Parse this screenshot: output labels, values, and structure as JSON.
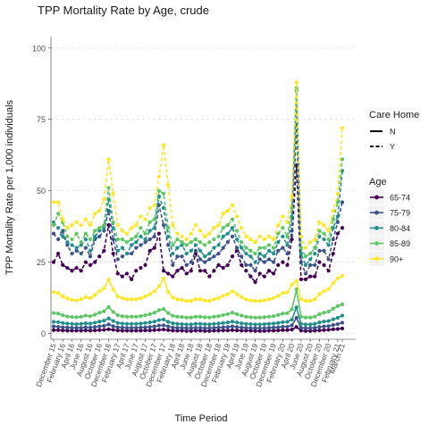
{
  "chart_data": {
    "type": "line",
    "title": "TPP Mortality Rate by Age, crude",
    "xlabel": "Time Period",
    "ylabel": "TPP Mortality Rate per 1,000 individuals",
    "ylim": [
      -2,
      104
    ],
    "yticks": [
      0,
      25,
      50,
      75,
      100
    ],
    "grid": true,
    "legend_position": "right",
    "x_tick_labels": [
      "December 15",
      "February 16",
      "April 16",
      "June 16",
      "August 16",
      "October 16",
      "December 16",
      "February 17",
      "April 17",
      "June 17",
      "August 17",
      "October 17",
      "December 17",
      "February 18",
      "April 18",
      "June 18",
      "August 18",
      "October 18",
      "December 18",
      "February 19",
      "April 19",
      "June 19",
      "August 19",
      "October 19",
      "December 19",
      "February 20",
      "April 20",
      "June 20",
      "August 20",
      "October 20",
      "December 20",
      "February 21",
      "March 21"
    ],
    "x_tick_months": [
      0,
      2,
      4,
      6,
      8,
      10,
      12,
      14,
      16,
      18,
      20,
      22,
      24,
      26,
      28,
      30,
      32,
      34,
      36,
      38,
      40,
      42,
      44,
      46,
      48,
      50,
      52,
      54,
      56,
      58,
      60,
      62,
      63
    ],
    "legend": {
      "linetype_title": "Care Home",
      "linetype_items": [
        {
          "label": "N",
          "dash": "solid"
        },
        {
          "label": "Y",
          "dash": "dashed"
        }
      ],
      "age_title": "Age",
      "age_items": [
        {
          "label": "65-74",
          "color": "#440154"
        },
        {
          "label": "75-79",
          "color": "#3b528b"
        },
        {
          "label": "80-84",
          "color": "#21908c"
        },
        {
          "label": "85-89",
          "color": "#5dc863"
        },
        {
          "label": "90+",
          "color": "#fde725"
        }
      ]
    },
    "months_x": [
      0,
      1,
      2,
      3,
      4,
      5,
      6,
      7,
      8,
      9,
      10,
      11,
      12,
      13,
      14,
      15,
      16,
      17,
      18,
      19,
      20,
      21,
      22,
      23,
      24,
      25,
      26,
      27,
      28,
      29,
      30,
      31,
      32,
      33,
      34,
      35,
      36,
      37,
      38,
      39,
      40,
      41,
      42,
      43,
      44,
      45,
      46,
      47,
      48,
      49,
      50,
      51,
      52,
      53,
      54,
      55,
      56,
      57,
      58,
      59,
      60,
      61,
      62,
      63
    ],
    "series": [
      {
        "name": "65-74",
        "care_home": "Y",
        "color": "#440154",
        "values": [
          25,
          28,
          24,
          23,
          22,
          23,
          22,
          25,
          24,
          25,
          27,
          29,
          38,
          28,
          21,
          20,
          21,
          19,
          22,
          23,
          24,
          29,
          30,
          35,
          22,
          21,
          20,
          22,
          23,
          21,
          22,
          28,
          22,
          22,
          20,
          22,
          24,
          23,
          24,
          27,
          29,
          24,
          22,
          20,
          18,
          21,
          20,
          22,
          21,
          24,
          25,
          24,
          33,
          59,
          19,
          19,
          20,
          20,
          25,
          24,
          22,
          28,
          35,
          37
        ]
      },
      {
        "name": "75-79",
        "care_home": "Y",
        "color": "#3b528b",
        "values": [
          35,
          33,
          36,
          31,
          28,
          29,
          28,
          30,
          27,
          33,
          34,
          36,
          43,
          33,
          26,
          27,
          28,
          28,
          30,
          31,
          32,
          33,
          34,
          45,
          38,
          31,
          24,
          27,
          27,
          24,
          25,
          29,
          26,
          25,
          26,
          27,
          28,
          30,
          32,
          34,
          30,
          27,
          24,
          24,
          22,
          26,
          25,
          26,
          25,
          29,
          30,
          28,
          36,
          73,
          25,
          21,
          24,
          24,
          29,
          29,
          26,
          33,
          39,
          46
        ]
      },
      {
        "name": "80-84",
        "care_home": "Y",
        "color": "#21908c",
        "values": [
          39,
          37,
          34,
          32,
          31,
          30,
          31,
          33,
          29,
          34,
          36,
          37,
          47,
          37,
          29,
          30,
          28,
          31,
          32,
          34,
          33,
          36,
          37,
          48,
          44,
          34,
          28,
          30,
          31,
          28,
          29,
          31,
          29,
          27,
          28,
          30,
          31,
          34,
          35,
          37,
          33,
          30,
          28,
          27,
          25,
          28,
          27,
          29,
          28,
          32,
          34,
          31,
          41,
          85,
          28,
          24,
          26,
          28,
          34,
          33,
          31,
          37,
          41,
          57
        ]
      },
      {
        "name": "85-89",
        "care_home": "Y",
        "color": "#5dc863",
        "values": [
          38,
          42,
          39,
          34,
          33,
          35,
          32,
          35,
          33,
          36,
          37,
          38,
          51,
          39,
          33,
          33,
          32,
          33,
          34,
          37,
          35,
          39,
          40,
          50,
          49,
          37,
          31,
          33,
          32,
          31,
          32,
          33,
          32,
          31,
          32,
          33,
          34,
          37,
          38,
          40,
          36,
          32,
          30,
          29,
          28,
          30,
          30,
          31,
          30,
          35,
          37,
          34,
          44,
          86,
          30,
          27,
          28,
          30,
          36,
          35,
          33,
          40,
          46,
          61
        ]
      },
      {
        "name": "90+",
        "care_home": "Y",
        "color": "#fde725",
        "values": [
          46,
          46,
          40,
          37,
          38,
          39,
          38,
          40,
          38,
          42,
          43,
          47,
          61,
          49,
          38,
          36,
          35,
          37,
          38,
          41,
          40,
          44,
          45,
          55,
          66,
          52,
          38,
          35,
          34,
          33,
          35,
          38,
          36,
          34,
          35,
          37,
          38,
          42,
          43,
          45,
          41,
          37,
          34,
          33,
          32,
          34,
          33,
          34,
          33,
          38,
          41,
          39,
          48,
          88,
          34,
          30,
          32,
          33,
          39,
          38,
          36,
          43,
          49,
          72
        ]
      },
      {
        "name": "65-74",
        "care_home": "N",
        "color": "#440154",
        "values": [
          1.2,
          1.2,
          1.1,
          1.0,
          1.0,
          1.0,
          1.0,
          1.1,
          1.0,
          1.1,
          1.2,
          1.3,
          1.5,
          1.3,
          1.1,
          1.0,
          1.0,
          1.0,
          1.0,
          1.0,
          1.1,
          1.1,
          1.2,
          1.3,
          1.4,
          1.2,
          1.0,
          1.0,
          1.0,
          0.9,
          0.9,
          1.0,
          1.0,
          0.9,
          0.9,
          1.0,
          1.0,
          1.1,
          1.1,
          1.2,
          1.1,
          1.0,
          1.0,
          1.0,
          0.9,
          0.9,
          0.9,
          1.0,
          1.0,
          1.1,
          1.2,
          1.2,
          1.4,
          2.3,
          1.0,
          0.9,
          0.9,
          1.0,
          1.1,
          1.2,
          1.3,
          1.5,
          1.6,
          1.8
        ]
      },
      {
        "name": "75-79",
        "care_home": "N",
        "color": "#3b528b",
        "values": [
          2.5,
          2.4,
          2.2,
          2.1,
          2.0,
          2.0,
          2.0,
          2.2,
          2.1,
          2.3,
          2.5,
          2.7,
          3.2,
          2.6,
          2.2,
          2.1,
          2.0,
          2.0,
          2.0,
          2.1,
          2.2,
          2.3,
          2.5,
          2.8,
          2.9,
          2.5,
          2.1,
          2.0,
          2.0,
          1.9,
          1.9,
          2.0,
          2.0,
          1.9,
          1.9,
          2.0,
          2.1,
          2.2,
          2.3,
          2.5,
          2.3,
          2.1,
          2.0,
          1.9,
          1.9,
          1.9,
          1.9,
          2.0,
          2.1,
          2.2,
          2.4,
          2.4,
          2.9,
          5.5,
          2.0,
          1.9,
          1.9,
          2.0,
          2.3,
          2.5,
          2.6,
          3.0,
          3.3,
          3.8
        ]
      },
      {
        "name": "80-84",
        "care_home": "N",
        "color": "#21908c",
        "values": [
          4.1,
          4.0,
          3.7,
          3.5,
          3.4,
          3.3,
          3.4,
          3.6,
          3.5,
          3.8,
          4.2,
          4.5,
          5.3,
          4.4,
          3.7,
          3.5,
          3.4,
          3.4,
          3.4,
          3.5,
          3.7,
          3.9,
          4.2,
          4.7,
          4.9,
          4.1,
          3.6,
          3.4,
          3.3,
          3.2,
          3.2,
          3.4,
          3.4,
          3.3,
          3.2,
          3.4,
          3.5,
          3.7,
          3.9,
          4.2,
          3.9,
          3.6,
          3.4,
          3.3,
          3.2,
          3.2,
          3.3,
          3.4,
          3.5,
          3.7,
          4.0,
          4.1,
          4.9,
          9.2,
          3.4,
          3.2,
          3.2,
          3.4,
          3.9,
          4.2,
          4.4,
          5.0,
          5.5,
          6.3
        ]
      },
      {
        "name": "85-89",
        "care_home": "N",
        "color": "#5dc863",
        "values": [
          7.2,
          7.0,
          6.4,
          6.0,
          5.8,
          5.7,
          5.9,
          6.3,
          6.1,
          6.6,
          7.3,
          7.8,
          9.3,
          7.6,
          6.4,
          6.1,
          5.9,
          5.9,
          5.9,
          6.1,
          6.4,
          6.8,
          7.3,
          8.2,
          8.6,
          7.2,
          6.2,
          5.9,
          5.8,
          5.6,
          5.6,
          5.9,
          5.9,
          5.7,
          5.6,
          5.9,
          6.1,
          6.5,
          6.8,
          7.3,
          6.8,
          6.3,
          5.9,
          5.7,
          5.6,
          5.6,
          5.7,
          5.9,
          6.1,
          6.5,
          7.0,
          7.1,
          8.5,
          15.5,
          5.9,
          5.6,
          5.6,
          5.9,
          6.8,
          7.3,
          7.7,
          8.7,
          9.6,
          10.2
        ]
      },
      {
        "name": "90+",
        "care_home": "N",
        "color": "#fde725",
        "values": [
          14.5,
          14.2,
          13.0,
          12.3,
          11.8,
          11.6,
          12.0,
          12.8,
          12.4,
          13.5,
          14.8,
          15.8,
          18.9,
          15.4,
          13.0,
          12.4,
          12.0,
          12.0,
          12.0,
          12.4,
          13.0,
          13.8,
          14.8,
          16.6,
          19.3,
          14.6,
          12.6,
          12.0,
          11.8,
          11.4,
          11.4,
          12.0,
          12.0,
          11.6,
          11.4,
          12.0,
          12.4,
          13.2,
          13.8,
          14.8,
          13.8,
          12.8,
          12.0,
          11.6,
          11.4,
          11.4,
          11.6,
          12.0,
          12.4,
          13.2,
          14.2,
          14.4,
          17.2,
          18.5,
          12.0,
          11.4,
          11.4,
          12.0,
          13.8,
          14.8,
          15.6,
          17.6,
          19.4,
          20.2
        ]
      }
    ]
  }
}
